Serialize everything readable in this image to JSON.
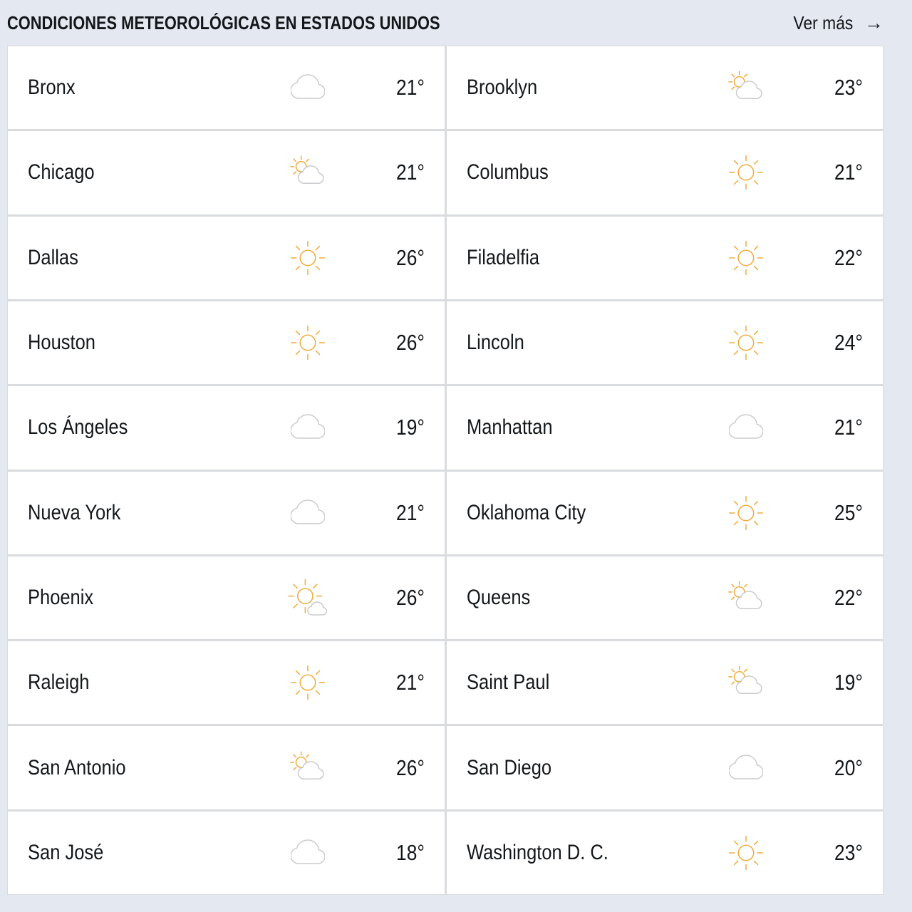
{
  "header": {
    "title": "CONDICIONES METEOROLÓGICAS EN ESTADOS UNIDOS",
    "more_label": "Ver más",
    "more_arrow": "→"
  },
  "weather": {
    "cities": [
      {
        "name": "Bronx",
        "icon": "cloud",
        "temp": "21°"
      },
      {
        "name": "Chicago",
        "icon": "partly-cloudy",
        "temp": "21°"
      },
      {
        "name": "Dallas",
        "icon": "sun",
        "temp": "26°"
      },
      {
        "name": "Houston",
        "icon": "sun",
        "temp": "26°"
      },
      {
        "name": "Los Ángeles",
        "icon": "cloud",
        "temp": "19°"
      },
      {
        "name": "Nueva York",
        "icon": "cloud",
        "temp": "21°"
      },
      {
        "name": "Phoenix",
        "icon": "sun-cloud",
        "temp": "26°"
      },
      {
        "name": "Raleigh",
        "icon": "sun",
        "temp": "21°"
      },
      {
        "name": "San Antonio",
        "icon": "partly-cloudy",
        "temp": "26°"
      },
      {
        "name": "San José",
        "icon": "cloud",
        "temp": "18°"
      },
      {
        "name": "Brooklyn",
        "icon": "partly-cloudy",
        "temp": "23°"
      },
      {
        "name": "Columbus",
        "icon": "sun",
        "temp": "21°"
      },
      {
        "name": "Filadelfia",
        "icon": "sun",
        "temp": "22°"
      },
      {
        "name": "Lincoln",
        "icon": "sun",
        "temp": "24°"
      },
      {
        "name": "Manhattan",
        "icon": "cloud",
        "temp": "21°"
      },
      {
        "name": "Oklahoma City",
        "icon": "sun",
        "temp": "25°"
      },
      {
        "name": "Queens",
        "icon": "partly-cloudy",
        "temp": "22°"
      },
      {
        "name": "Saint Paul",
        "icon": "partly-cloudy",
        "temp": "19°"
      },
      {
        "name": "San Diego",
        "icon": "cloud",
        "temp": "20°"
      },
      {
        "name": "Washington D. C.",
        "icon": "sun",
        "temp": "23°"
      }
    ]
  },
  "colors": {
    "background": "#e4e9f1",
    "card": "#ffffff",
    "divider": "#d9dbde",
    "text": "#14171a",
    "sun": "#f0ac3c",
    "cloud": "#c9cbce"
  }
}
